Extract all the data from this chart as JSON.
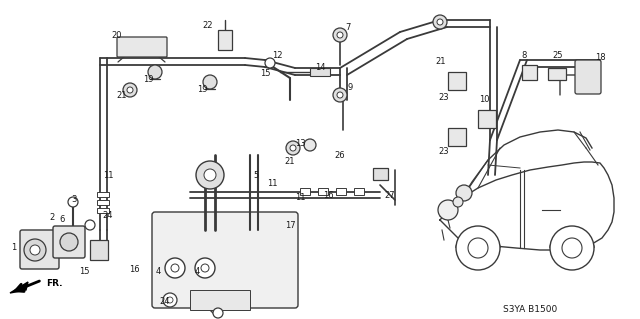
{
  "background_color": "#ffffff",
  "figsize": [
    6.4,
    3.19
  ],
  "dpi": 100,
  "diagram_code": "S3YA B1500",
  "line_color": "#3a3a3a",
  "text_color": "#1a1a1a",
  "label_fontsize": 6.0
}
